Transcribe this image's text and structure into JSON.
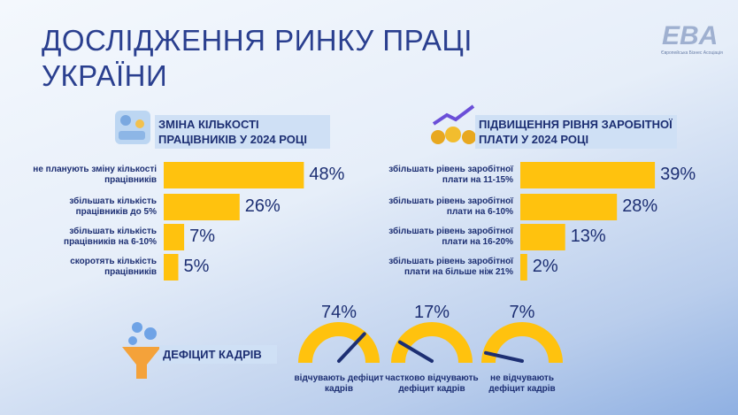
{
  "header": {
    "title": "ДОСЛІДЖЕННЯ РИНКУ ПРАЦІ УКРАЇНИ",
    "logo": "EBA",
    "logo_subtitle": "Європейська Бізнес Асоціація"
  },
  "chart_data": [
    {
      "type": "bar",
      "orientation": "horizontal",
      "title": "ЗМІНА КІЛЬКОСТІ ПРАЦІВНИКІВ У 2024 РОЦІ",
      "categories": [
        "не планують зміну кількості працівників",
        "збільшать кількість працівників до 5%",
        "збільшать кількість працівників на 6-10%",
        "скоротять кількість працівників"
      ],
      "values": [
        48,
        26,
        7,
        5
      ],
      "value_labels": [
        "48%",
        "26%",
        "7%",
        "5%"
      ],
      "color": "#ffc20e"
    },
    {
      "type": "bar",
      "orientation": "horizontal",
      "title": "ПІДВИЩЕННЯ РІВНЯ ЗАРОБІТНОЇ ПЛАТИ У 2024 РОЦІ",
      "categories": [
        "збільшать рівень заробітної плати на 11-15%",
        "збільшать рівень заробітної плати на 6-10%",
        "збільшать рівень заробітної плати на 16-20%",
        "збільшать рівень заробітної плати на більше ніж 21%"
      ],
      "values": [
        39,
        28,
        13,
        2
      ],
      "value_labels": [
        "39%",
        "28%",
        "13%",
        "2%"
      ],
      "color": "#ffc20e"
    },
    {
      "type": "gauge",
      "title": "ДЕФІЦИТ КАДРІВ",
      "categories": [
        "відчувають дефіцит кадрів",
        "частково відчувають дефіцит кадрів",
        "не відчувають дефіцит кадрів"
      ],
      "values": [
        74,
        17,
        7
      ],
      "value_labels": [
        "74%",
        "17%",
        "7%"
      ],
      "ylim": [
        0,
        100
      ],
      "color": "#ffc20e"
    }
  ]
}
